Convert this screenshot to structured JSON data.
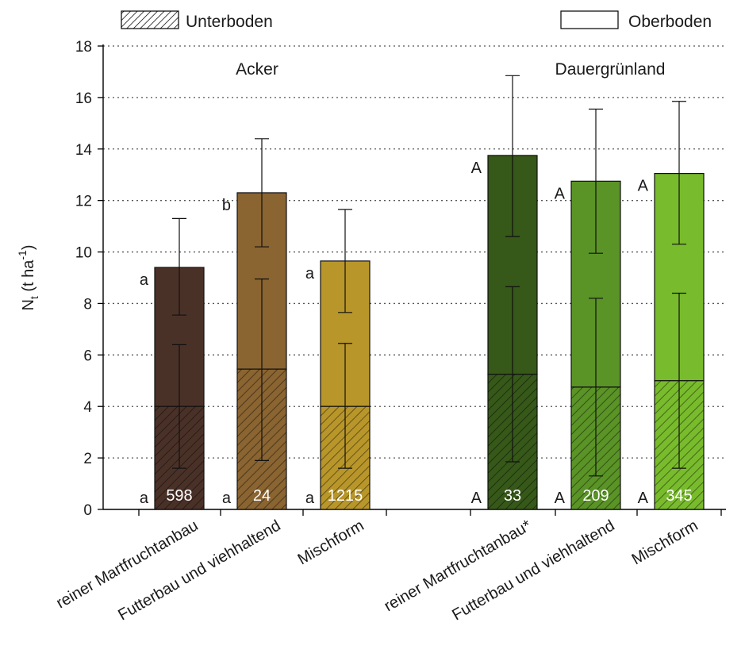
{
  "chart_data": {
    "type": "bar",
    "stacked": true,
    "ylabel": {
      "main": "N",
      "sub": "t",
      "unit_open": " (t ha",
      "unit_sup": "-1",
      "unit_close": ")"
    },
    "xlabel": "",
    "ylim": [
      0,
      18
    ],
    "yticks": [
      "0",
      "2",
      "4",
      "6",
      "8",
      "10",
      "12",
      "14",
      "16",
      "18"
    ],
    "grid": "horizontal-dotted",
    "legend": [
      {
        "label": "Unterboden",
        "pattern": "hatched"
      },
      {
        "label": "Oberboden",
        "pattern": "open"
      }
    ],
    "groups": [
      {
        "label": "Acker",
        "bars": [
          {
            "category": "reiner Martfruchtanbau",
            "unterboden": 4.0,
            "total": 9.4,
            "err_unter": [
              1.6,
              6.4
            ],
            "err_total": [
              7.55,
              11.3
            ],
            "letter_unter": "a",
            "letter_total": "a",
            "n": "598",
            "color": "#4a3128"
          },
          {
            "category": "Futterbau und viehhaltend",
            "unterboden": 5.45,
            "total": 12.3,
            "err_unter": [
              1.9,
              8.95
            ],
            "err_total": [
              10.2,
              14.4
            ],
            "letter_unter": "a",
            "letter_total": "b",
            "n": "24",
            "color": "#8a6431"
          },
          {
            "category": "Mischform",
            "unterboden": 4.0,
            "total": 9.65,
            "err_unter": [
              1.6,
              6.45
            ],
            "err_total": [
              7.65,
              11.65
            ],
            "letter_unter": "a",
            "letter_total": "a",
            "n": "1215",
            "color": "#b8962a"
          }
        ]
      },
      {
        "label": "Dauergrünland",
        "bars": [
          {
            "category": "reiner Martfruchtanbau*",
            "unterboden": 5.25,
            "total": 13.75,
            "err_unter": [
              1.85,
              8.65
            ],
            "err_total": [
              10.6,
              16.85
            ],
            "letter_unter": "A",
            "letter_total": "A",
            "n": "33",
            "color": "#365819"
          },
          {
            "category": "Futterbau und viehhaltend",
            "unterboden": 4.75,
            "total": 12.75,
            "err_unter": [
              1.3,
              8.2
            ],
            "err_total": [
              9.95,
              15.55
            ],
            "letter_unter": "A",
            "letter_total": "A",
            "n": "209",
            "color": "#5a9326"
          },
          {
            "category": "Mischform",
            "unterboden": 5.0,
            "total": 13.05,
            "err_unter": [
              1.6,
              8.4
            ],
            "err_total": [
              10.3,
              15.85
            ],
            "letter_unter": "A",
            "letter_total": "A",
            "n": "345",
            "color": "#78bb2c"
          }
        ]
      }
    ]
  }
}
